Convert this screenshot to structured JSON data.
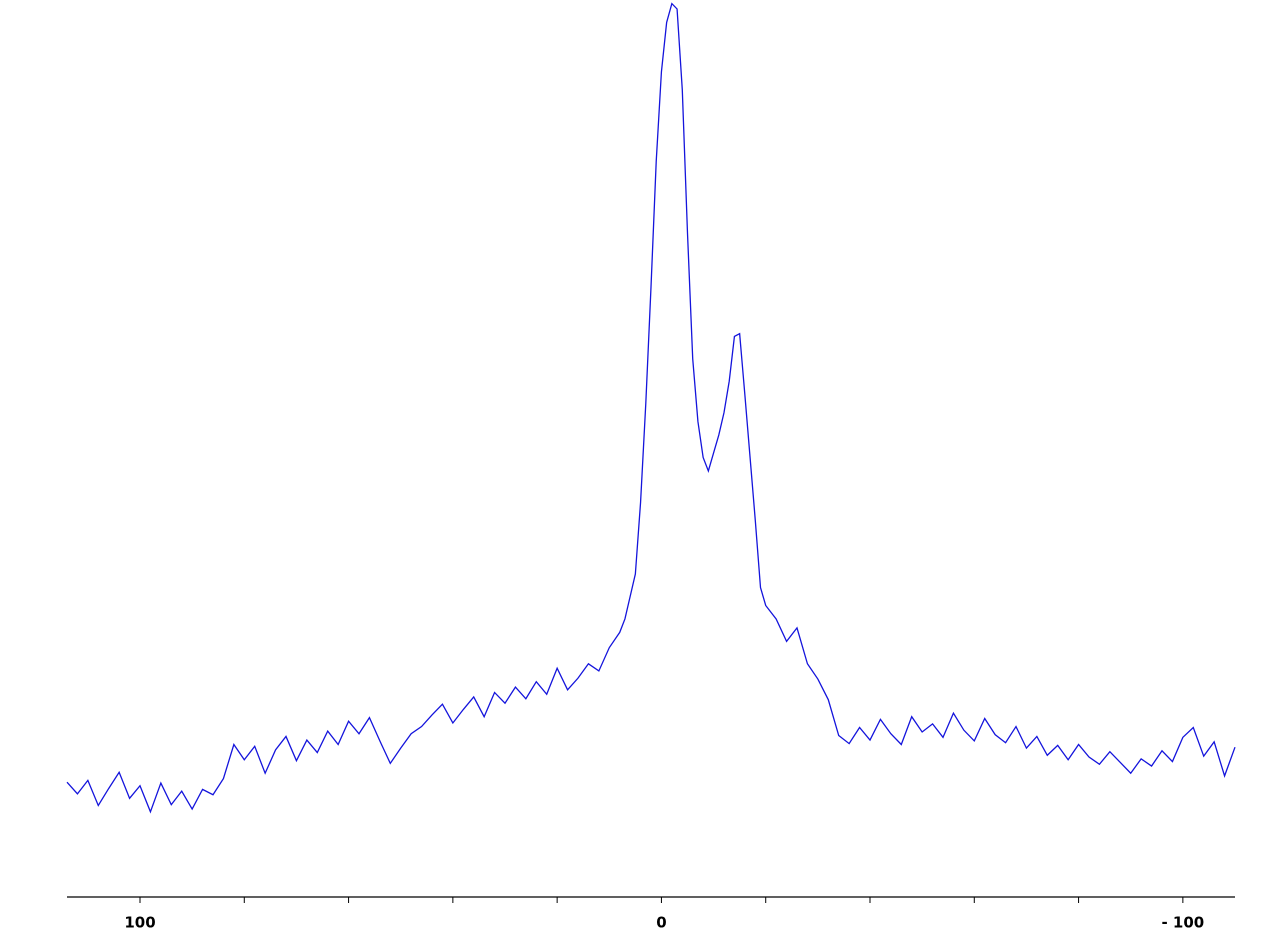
{
  "chart_data": {
    "type": "line",
    "x": [
      114,
      112,
      110,
      108,
      106,
      104,
      102,
      100,
      98,
      96,
      94,
      92,
      90,
      88,
      86,
      84,
      82,
      80,
      78,
      76,
      74,
      72,
      70,
      68,
      66,
      64,
      62,
      60,
      58,
      56,
      54,
      52,
      50,
      48,
      46,
      44,
      42,
      40,
      38,
      36,
      34,
      32,
      30,
      28,
      26,
      24,
      22,
      20,
      18,
      16,
      14,
      12,
      10,
      8,
      7,
      6,
      5,
      4,
      3,
      2,
      1,
      0,
      -1,
      -2,
      -3,
      -4,
      -5,
      -6,
      -7,
      -8,
      -9,
      -10,
      -11,
      -12,
      -13,
      -14,
      -15,
      -16,
      -17,
      -18,
      -19,
      -20,
      -22,
      -24,
      -26,
      -28,
      -30,
      -32,
      -34,
      -36,
      -38,
      -40,
      -42,
      -44,
      -46,
      -48,
      -50,
      -52,
      -54,
      -56,
      -58,
      -60,
      -62,
      -64,
      -66,
      -68,
      -70,
      -72,
      -74,
      -76,
      -78,
      -80,
      -82,
      -84,
      -86,
      -88,
      -90,
      -92,
      -94,
      -96,
      -98,
      -100,
      -102,
      -104,
      -106,
      -108,
      -110
    ],
    "series": [
      {
        "color": "#1414dc",
        "values": [
          12.8,
          11.5,
          13.0,
          10.2,
          12.1,
          13.9,
          11.0,
          12.4,
          9.5,
          12.7,
          10.3,
          11.8,
          9.8,
          12.0,
          11.4,
          13.2,
          17.0,
          15.3,
          16.8,
          13.8,
          16.4,
          17.9,
          15.2,
          17.5,
          16.1,
          18.5,
          17.0,
          19.6,
          18.2,
          20.0,
          17.4,
          14.9,
          16.6,
          18.2,
          19.0,
          20.3,
          21.5,
          19.4,
          20.9,
          22.3,
          20.1,
          22.8,
          21.6,
          23.4,
          22.1,
          24.0,
          22.6,
          25.5,
          23.1,
          24.4,
          26.0,
          25.2,
          27.8,
          29.5,
          31.0,
          33.5,
          36.0,
          44.0,
          55.0,
          68.0,
          82.0,
          92.0,
          97.5,
          99.6,
          99.0,
          90.0,
          74.0,
          60.0,
          53.0,
          49.0,
          47.5,
          49.5,
          51.5,
          54.0,
          57.5,
          62.5,
          62.8,
          56.0,
          49.0,
          42.0,
          34.5,
          32.5,
          31.0,
          28.5,
          30.0,
          26.0,
          24.3,
          22.0,
          18.0,
          17.1,
          18.9,
          17.5,
          19.8,
          18.2,
          17.0,
          20.1,
          18.4,
          19.3,
          17.8,
          20.5,
          18.6,
          17.4,
          19.9,
          18.1,
          17.2,
          19.0,
          16.6,
          17.9,
          15.8,
          16.9,
          15.3,
          17.0,
          15.6,
          14.8,
          16.2,
          15.0,
          13.8,
          15.4,
          14.6,
          16.3,
          15.1,
          17.8,
          18.9,
          15.7,
          17.3,
          13.5,
          16.7
        ]
      }
    ],
    "xlim": [
      114,
      -110
    ],
    "xticks": [
      100,
      0,
      {
        "value": -100,
        "label": "- 100"
      }
    ],
    "xminorticks": [
      80,
      60,
      40,
      20,
      -20,
      -40,
      -60,
      -80
    ],
    "ylim": [
      0,
      100
    ]
  }
}
